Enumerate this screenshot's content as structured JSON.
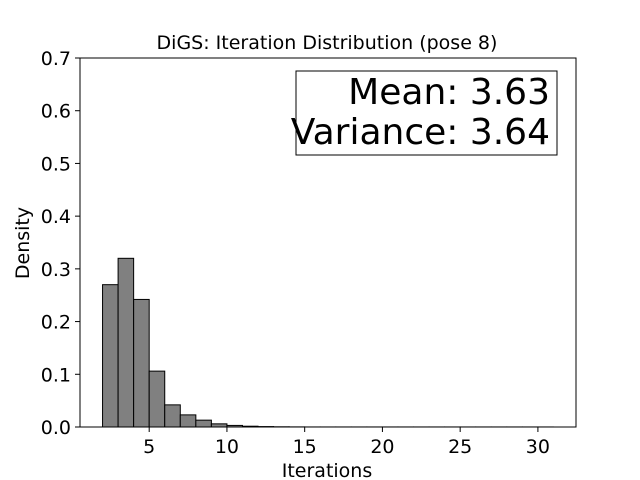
{
  "chart_data": {
    "type": "bar",
    "title": "DiGS: Iteration Distribution (pose 8)",
    "xlabel": "Iterations",
    "ylabel": "Density",
    "xlim": [
      0.55,
      32.45
    ],
    "ylim": [
      0,
      0.7
    ],
    "xticks": [
      5,
      10,
      15,
      20,
      25,
      30
    ],
    "yticks": [
      "0.0",
      "0.1",
      "0.2",
      "0.3",
      "0.4",
      "0.5",
      "0.6",
      "0.7"
    ],
    "grid": false,
    "bin_width": 1,
    "bins": [
      2,
      3,
      4,
      5,
      6,
      7,
      8,
      9,
      10,
      11,
      12,
      13,
      14,
      15,
      16,
      17,
      18,
      19,
      20,
      21,
      22,
      23,
      24,
      25,
      26,
      27,
      28,
      29,
      30
    ],
    "values": [
      0.27,
      0.32,
      0.242,
      0.106,
      0.042,
      0.023,
      0.013,
      0.006,
      0.003,
      0.0015,
      0.0008,
      0.0004,
      0.0002,
      0.0001,
      0.0001,
      0.0001,
      0.0001,
      0.0001,
      0.0001,
      0.0001,
      0.0001,
      0.0001,
      0.0001,
      0.0001,
      0.0001,
      0.0001,
      0.0001,
      0.0001,
      0.0001
    ],
    "bar_color": "#808080",
    "edge_color": "#000000",
    "annotation": {
      "lines": [
        "Mean: 3.63",
        "Variance: 3.64"
      ],
      "position": "top-right"
    }
  }
}
